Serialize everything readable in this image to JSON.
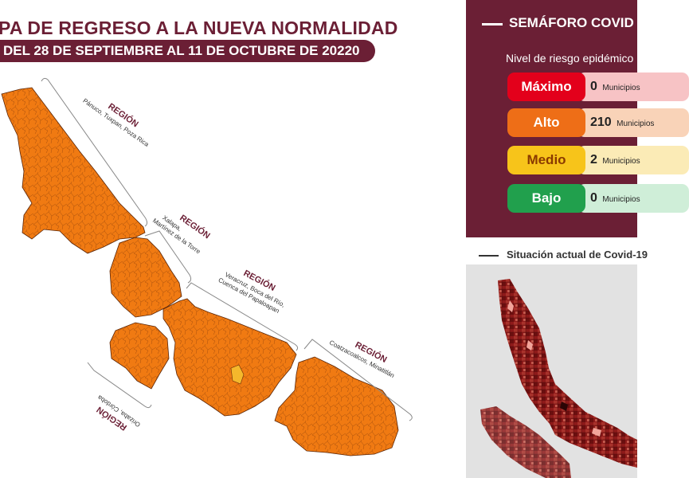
{
  "header": {
    "title": "PA DE REGRESO A LA NUEVA NORMALIDAD",
    "date_range": "DEL 28 DE SEPTIEMBRE AL 11 DE OCTUBRE DE 20220"
  },
  "map": {
    "fill_color": "#f07a12",
    "highlight_color": "#f5b82c",
    "regions": [
      {
        "label": "REGIÓN",
        "places": "Pánuco, Tuxpan, Poza Rica"
      },
      {
        "label": "REGIÓN",
        "places": "Xalapa,",
        "places2": "Martínez de la Torre"
      },
      {
        "label": "REGIÓN",
        "places": "Veracruz, Boca del Río,",
        "places2": "Cuenca del Papaloapan"
      },
      {
        "label": "REGIÓN",
        "places": "Coatzacoalcos, Minatitlán"
      },
      {
        "label": "REGIÓN",
        "places": "Orizaba, Córdoba"
      }
    ]
  },
  "semaforo": {
    "title": "SEMÁFORO COVID",
    "subtitle": "Nivel de riesgo epidémico",
    "levels": [
      {
        "label": "Máximo",
        "count": "0",
        "unit": "Municipios",
        "color": "#e3001b",
        "text_color": "#ffffff",
        "bg_light": "#f7c3c5"
      },
      {
        "label": "Alto",
        "count": "210",
        "unit": "Municipios",
        "color": "#ee6e17",
        "text_color": "#ffffff",
        "bg_light": "#f9d3b8"
      },
      {
        "label": "Medio",
        "count": "2",
        "unit": "Municipios",
        "color": "#f7c41a",
        "text_color": "#8a3a00",
        "bg_light": "#fbebb6"
      },
      {
        "label": "Bajo",
        "count": "0",
        "unit": "Municipios",
        "color": "#21a04d",
        "text_color": "#ffffff",
        "bg_light": "#cfeed8"
      }
    ]
  },
  "situacion": {
    "title": "Situación actual de Covid-19"
  }
}
